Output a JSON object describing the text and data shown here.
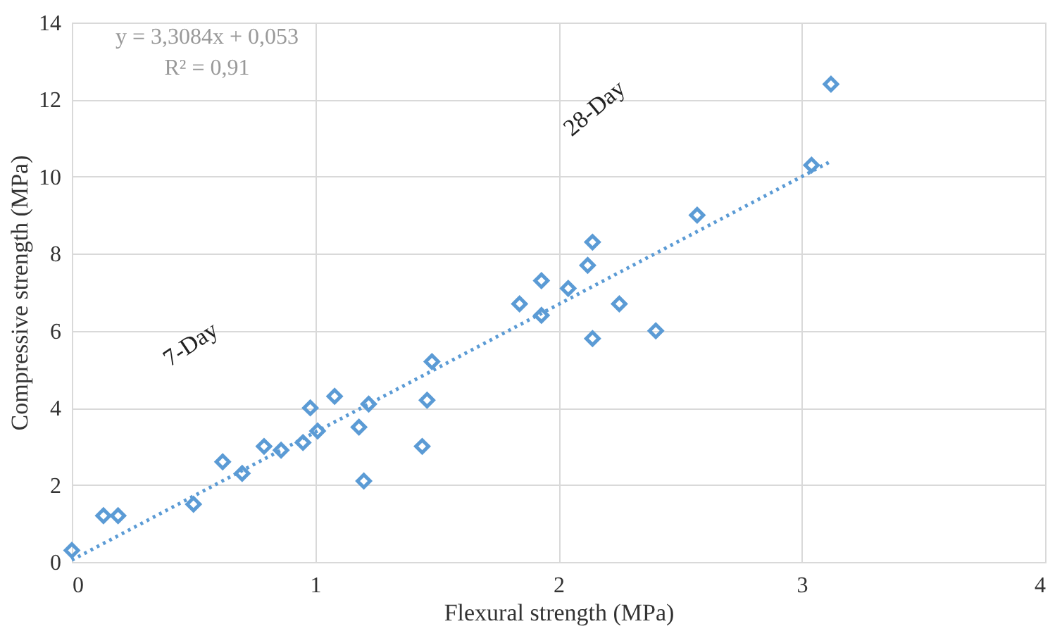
{
  "chart_data": {
    "type": "scatter",
    "xlabel": "Flexural strength (MPa)",
    "ylabel": "Compressive strength (MPa)",
    "xlim": [
      0,
      4
    ],
    "xticks": [
      0,
      1,
      2,
      3,
      4
    ],
    "ylim": [
      0,
      14
    ],
    "yticks": [
      0,
      2,
      4,
      6,
      8,
      10,
      12,
      14
    ],
    "grid": true,
    "marker": "diamond",
    "series": [
      {
        "color": "#5b9bd5",
        "x": [
          0.0,
          0.13,
          0.19,
          0.5,
          0.62,
          0.7,
          0.79,
          0.86,
          0.95,
          1.01,
          0.98,
          1.08,
          1.18,
          1.2,
          1.22,
          1.44,
          1.46,
          1.48,
          1.84,
          1.93,
          1.93,
          2.04,
          2.12,
          2.14,
          2.14,
          2.25,
          2.4,
          2.57,
          3.04,
          3.12
        ],
        "values": [
          0.3,
          1.2,
          1.2,
          1.5,
          2.6,
          2.3,
          3.0,
          2.9,
          3.1,
          3.4,
          4.0,
          4.3,
          3.5,
          2.1,
          4.1,
          3.0,
          4.2,
          5.2,
          6.7,
          6.4,
          7.3,
          7.1,
          7.7,
          8.3,
          5.8,
          6.7,
          6.0,
          9.0,
          10.3,
          12.4
        ]
      },
      {
        "type": "line",
        "color": "#5b9bd5",
        "line_style": "dotted",
        "marker": "none",
        "x": [
          0,
          3.12
        ],
        "values": [
          0.05,
          10.4
        ]
      }
    ],
    "annotations": [
      "y = 3,3084x + 0,053",
      "R² = 0,91",
      "7-Day",
      "28-Day"
    ]
  }
}
